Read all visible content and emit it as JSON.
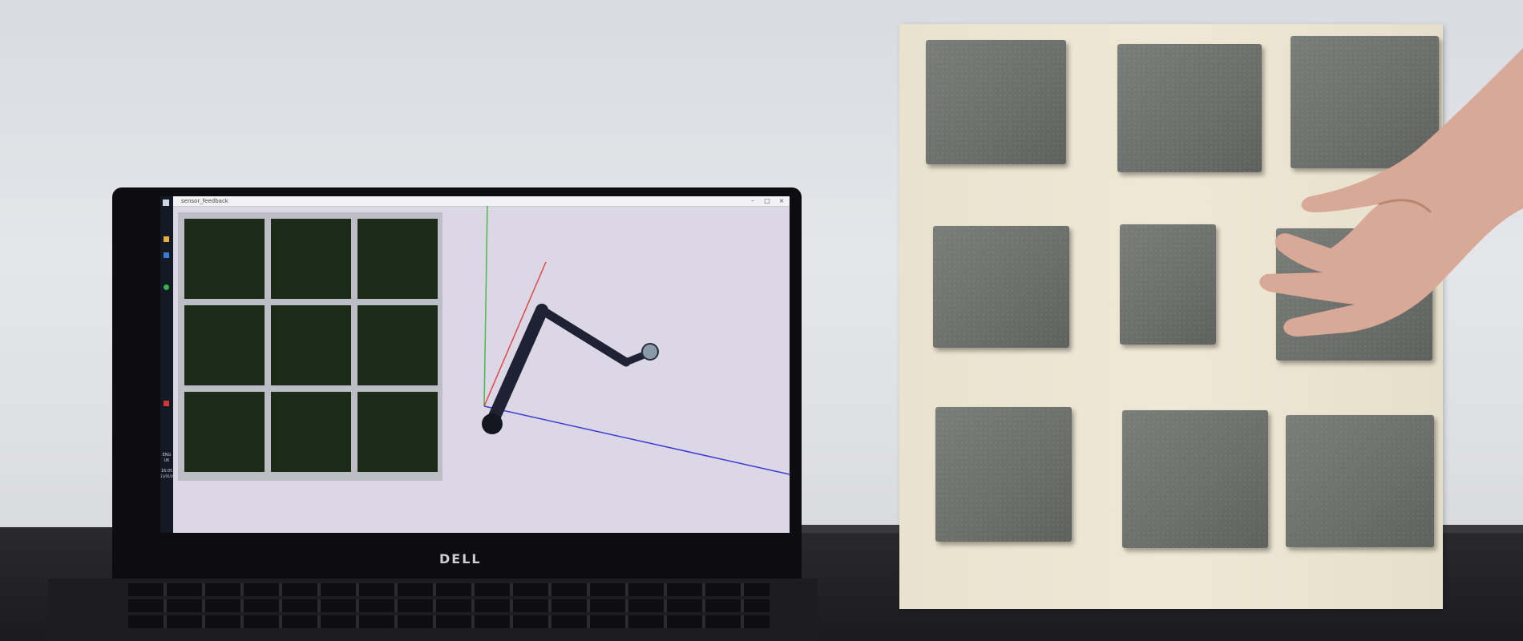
{
  "scene": {
    "description": "",
    "laptop": {
      "brand_text": "DELL",
      "screen": {
        "window_title": "sensor_feedback",
        "taskbar_language": "ENG",
        "taskbar_region": "UK",
        "taskbar_time": "16:05",
        "taskbar_date": "13/05/2017"
      }
    }
  },
  "colors": {
    "wall": "#dfe1e5",
    "table": "#1f1f21",
    "board": "#ece5d2",
    "foam_cube": "#707370",
    "robot_arm": "#1e2234",
    "axis_x": "#e04848",
    "axis_y": "#4ab84a",
    "axis_z": "#3a3ad8"
  }
}
